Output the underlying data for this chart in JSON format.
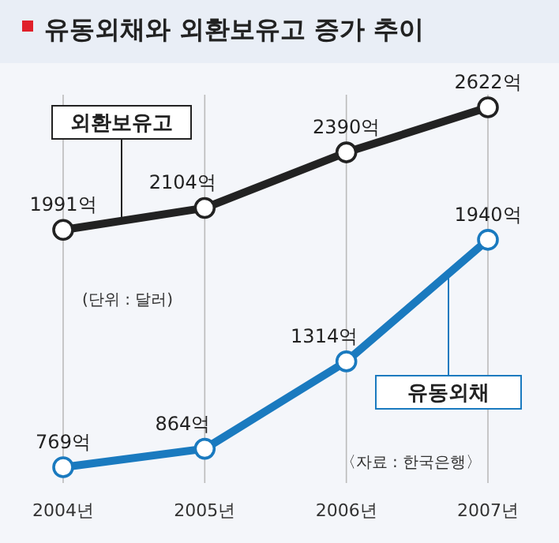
{
  "chart_data": {
    "type": "line",
    "title": "유동외채와 외환보유고 증가 추이",
    "categories": [
      "2004년",
      "2005년",
      "2006년",
      "2007년"
    ],
    "series": [
      {
        "name": "외환보유고",
        "color": "#222222",
        "values": [
          1991,
          2104,
          2390,
          2622
        ],
        "value_labels": [
          "1991억",
          "2104억",
          "2390억",
          "2622억"
        ]
      },
      {
        "name": "유동외채",
        "color": "#1a7abf",
        "values": [
          769,
          864,
          1314,
          1940
        ],
        "value_labels": [
          "769억",
          "864억",
          "1314억",
          "1940억"
        ]
      }
    ],
    "annotations": [
      "(단위 : 달러)",
      "〈자료 : 한국은행〉"
    ],
    "grid": "x",
    "marker": "circle",
    "line_style": "solid"
  }
}
